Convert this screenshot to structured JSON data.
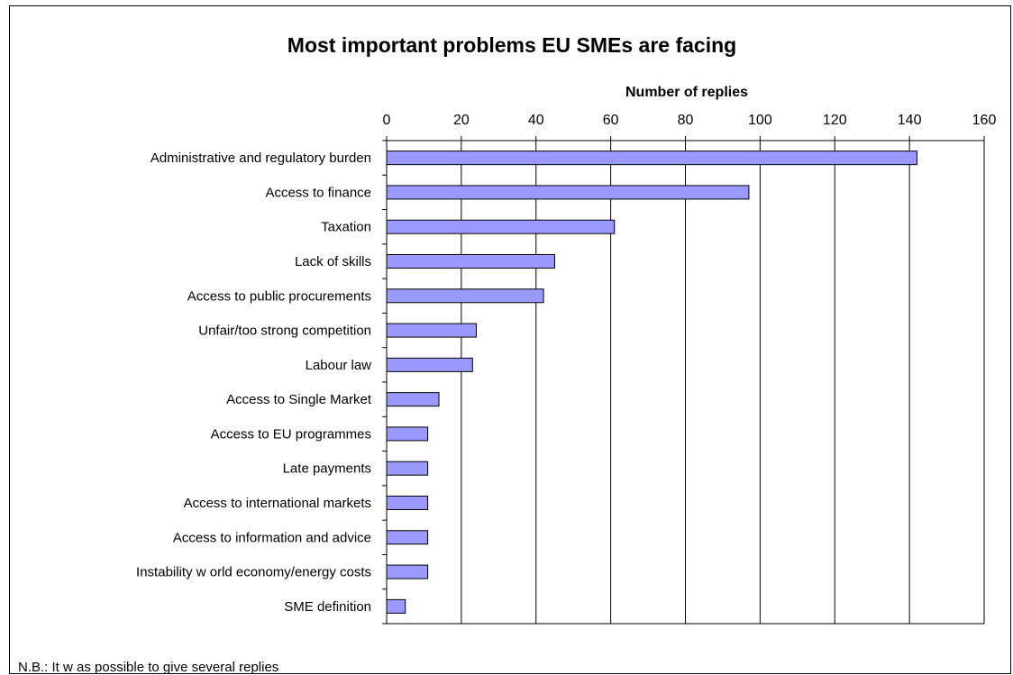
{
  "chart_data": {
    "type": "bar",
    "orientation": "horizontal",
    "title": "Most important problems EU SMEs are facing",
    "xlabel": "Number of replies",
    "ylabel": "",
    "xlim": [
      0,
      160
    ],
    "xticks": [
      0,
      20,
      40,
      60,
      80,
      100,
      120,
      140,
      160
    ],
    "x_axis_position": "top",
    "grid": "vertical",
    "bar_color": "#9999ff",
    "categories": [
      "Administrative and regulatory burden",
      "Access to finance",
      "Taxation",
      "Lack of skills",
      "Access to public procurements",
      "Unfair/too strong competition",
      "Labour law",
      "Access to Single Market",
      "Access to EU programmes",
      "Late payments",
      "Access to international markets",
      "Access to information and advice",
      "Instability w orld economy/energy costs",
      "SME definition"
    ],
    "values": [
      142,
      97,
      61,
      45,
      42,
      24,
      23,
      14,
      11,
      11,
      11,
      11,
      11,
      5
    ],
    "note": "N.B.: It w as possible to give several replies"
  }
}
